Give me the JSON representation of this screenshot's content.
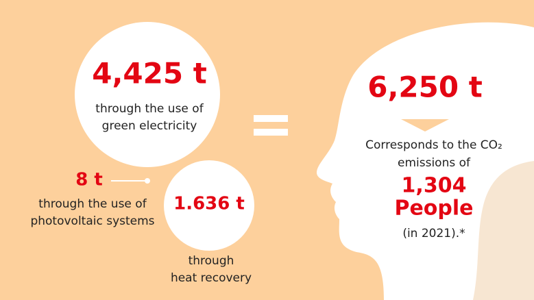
{
  "electricity": {
    "amount": "4,425 t",
    "line1": "through the use of",
    "line2": "green electricity"
  },
  "photovoltaic": {
    "amount": "8 t",
    "line1": "through the use of",
    "line2": "photovoltaic systems"
  },
  "heat": {
    "amount": "1.636 t",
    "line1": "through",
    "line2": "heat recovery"
  },
  "total": {
    "amount": "6,250 t",
    "line1": "Corresponds to the CO₂",
    "line2": "emissions of",
    "people_count": "1,304",
    "people_label": "People",
    "note": "(in 2021).*"
  }
}
